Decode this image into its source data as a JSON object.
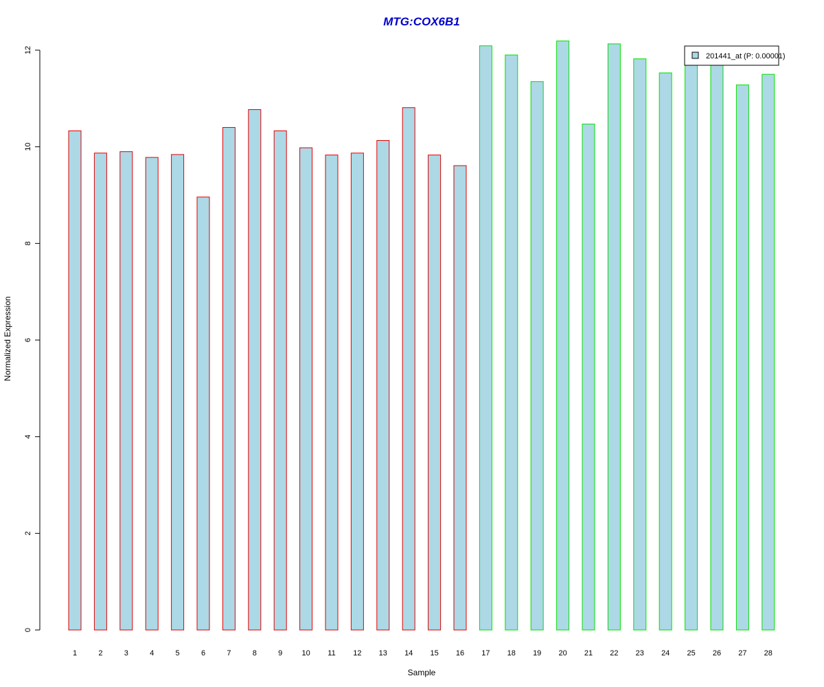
{
  "chart_data": {
    "type": "bar",
    "title": "MTG:COX6B1",
    "xlabel": "Sample",
    "ylabel": "Normalized Expression",
    "ylim": [
      0,
      12
    ],
    "yticks": [
      0,
      2,
      4,
      6,
      8,
      10,
      12
    ],
    "categories": [
      "1",
      "2",
      "3",
      "4",
      "5",
      "6",
      "7",
      "8",
      "9",
      "10",
      "11",
      "12",
      "13",
      "14",
      "15",
      "16",
      "17",
      "18",
      "19",
      "20",
      "21",
      "22",
      "23",
      "24",
      "25",
      "26",
      "27",
      "28"
    ],
    "series": [
      {
        "name": "201441_at (P: 0.00001)",
        "values": [
          10.33,
          9.87,
          9.9,
          9.78,
          9.84,
          8.96,
          10.4,
          10.77,
          10.33,
          9.98,
          9.83,
          9.87,
          10.13,
          10.81,
          9.83,
          9.61,
          12.09,
          11.9,
          11.35,
          12.19,
          10.47,
          12.13,
          11.82,
          11.53,
          11.72,
          11.72,
          11.28,
          11.5
        ]
      }
    ],
    "groups": [
      {
        "from": 1,
        "to": 16,
        "border_color": "#e00000"
      },
      {
        "from": 17,
        "to": 28,
        "border_color": "#00e000"
      }
    ],
    "bar_fill": "#add8e6",
    "title_color": "#0000cc",
    "legend": {
      "label": "201441_at (P: 0.00001)",
      "position": "top-right"
    },
    "grid": false
  }
}
